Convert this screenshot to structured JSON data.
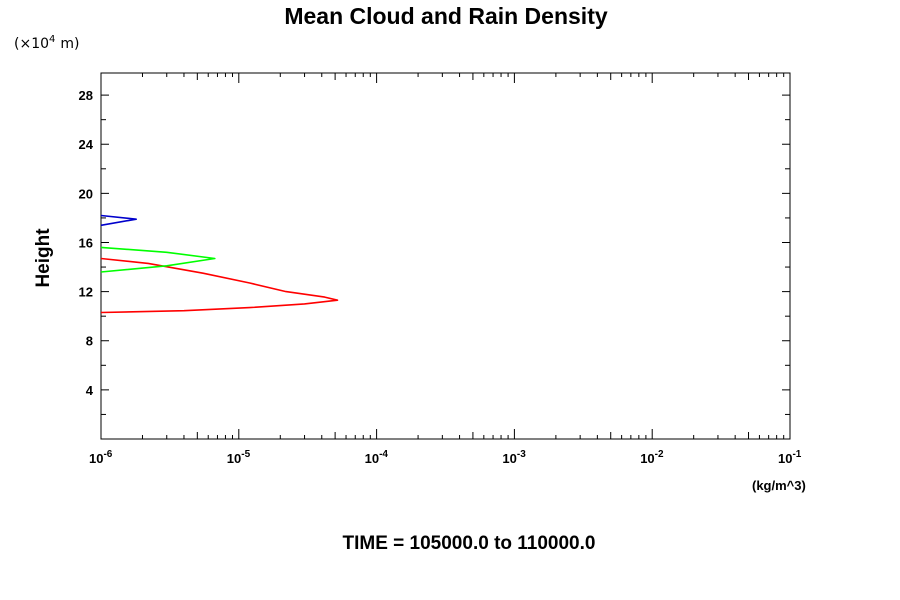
{
  "chart_data": {
    "type": "line",
    "title": "Mean Cloud and Rain Density",
    "ylabel": "Height",
    "y_scale_label": "(×10",
    "y_scale_exp": "4",
    "y_scale_unit": "m)",
    "xunit": "(kg/m^3)",
    "time_label": "TIME = 105000.0 to 110000.0",
    "x_scale": "log",
    "xlim": [
      1e-06,
      0.1
    ],
    "ylim": [
      0,
      29.8
    ],
    "grid": false,
    "x_ticks": [
      {
        "base": "10",
        "exp": "-6"
      },
      {
        "base": "10",
        "exp": "-5"
      },
      {
        "base": "10",
        "exp": "-4"
      },
      {
        "base": "10",
        "exp": "-3"
      },
      {
        "base": "10",
        "exp": "-2"
      },
      {
        "base": "10",
        "exp": "-1"
      }
    ],
    "y_ticks": [
      "4",
      "8",
      "12",
      "16",
      "20",
      "24",
      "28"
    ],
    "series": [
      {
        "color": "#ff0000",
        "points": [
          [
            1e-06,
            10.3
          ],
          [
            4e-06,
            10.45
          ],
          [
            1.2e-05,
            10.7
          ],
          [
            3e-05,
            11.0
          ],
          [
            5.2e-05,
            11.3
          ],
          [
            4.2e-05,
            11.55
          ],
          [
            2.2e-05,
            12.0
          ],
          [
            1.2e-05,
            12.7
          ],
          [
            5.5e-06,
            13.5
          ],
          [
            2.2e-06,
            14.3
          ],
          [
            1e-06,
            14.7
          ]
        ]
      },
      {
        "color": "#00ff00",
        "points": [
          [
            1e-06,
            13.6
          ],
          [
            3e-06,
            14.1
          ],
          [
            6.7e-06,
            14.7
          ],
          [
            3e-06,
            15.2
          ],
          [
            1e-06,
            15.6
          ]
        ]
      },
      {
        "color": "#0000cc",
        "points": [
          [
            1e-06,
            17.4
          ],
          [
            1.8e-06,
            17.9
          ],
          [
            1e-06,
            18.2
          ]
        ]
      }
    ]
  }
}
